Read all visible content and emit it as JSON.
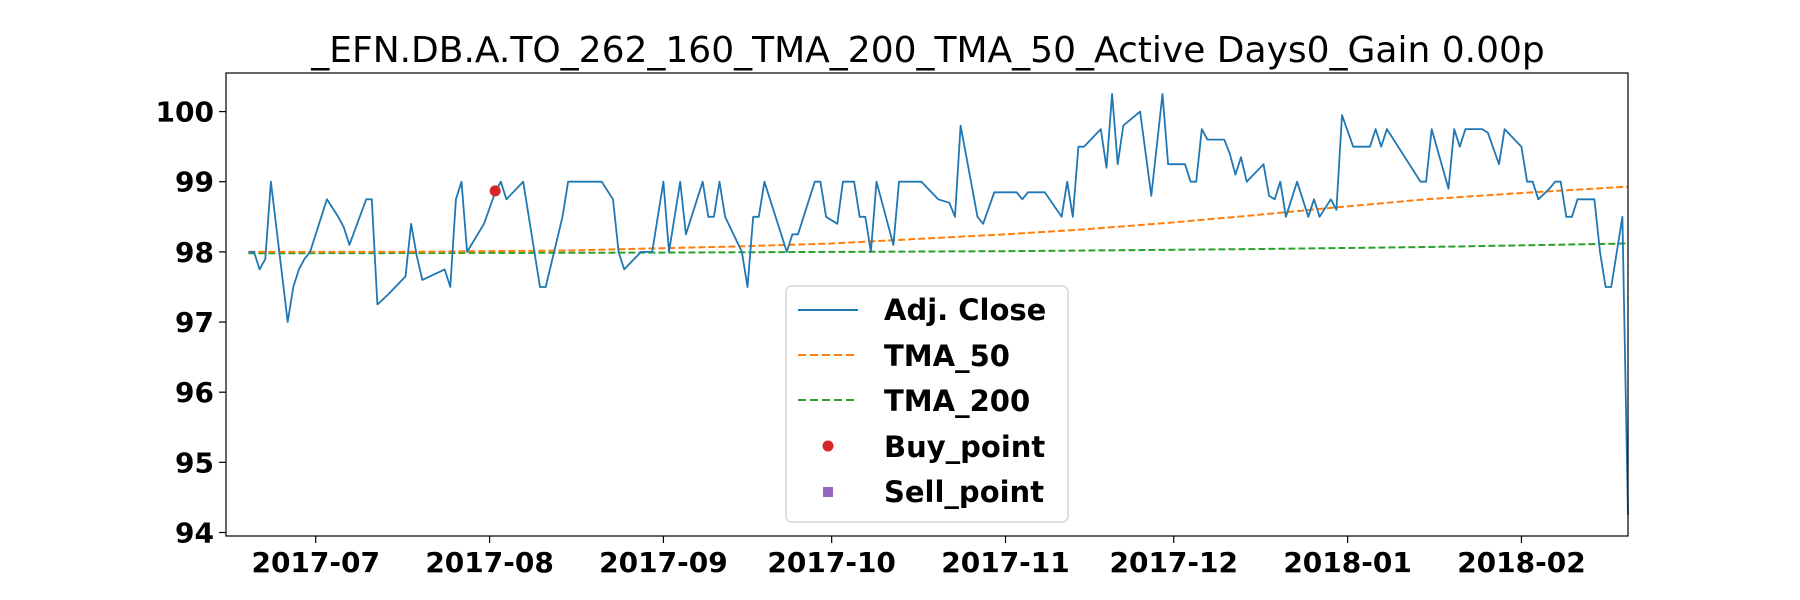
{
  "chart_data": {
    "type": "line",
    "title": "_EFN.DB.A.TO_262_160_TMA_200_TMA_50_Active Days0_Gain   0.00p",
    "xlabel": "",
    "ylabel": "",
    "xlim": [
      "2017-06-15",
      "2018-02-20"
    ],
    "ylim": [
      93.95,
      100.55
    ],
    "x_ticks": [
      "2017-07-01",
      "2017-08-01",
      "2017-09-01",
      "2017-10-01",
      "2017-11-01",
      "2017-12-01",
      "2018-01-01",
      "2018-02-01"
    ],
    "x_tick_labels": [
      "2017-07",
      "2017-08",
      "2017-09",
      "2017-10",
      "2017-11",
      "2017-12",
      "2018-01",
      "2018-02"
    ],
    "y_ticks": [
      94,
      95,
      96,
      97,
      98,
      99,
      100
    ],
    "y_tick_labels": [
      "94",
      "95",
      "96",
      "97",
      "98",
      "99",
      "100"
    ],
    "grid": false,
    "legend_position": "lower-center",
    "legend": [
      "Adj. Close",
      "TMA_50",
      "TMA_200",
      "Buy_point",
      "Sell_point"
    ],
    "colors": {
      "adj_close": "#1f77b4",
      "tma_50": "#ff7f0e",
      "tma_200": "#2ca02c",
      "buy_point": "#d62728",
      "sell_point": "#9467bd"
    },
    "series": [
      {
        "name": "Adj. Close",
        "style": "solid",
        "points": [
          [
            "2017-06-19",
            98.0
          ],
          [
            "2017-06-20",
            98.0
          ],
          [
            "2017-06-21",
            97.75
          ],
          [
            "2017-06-22",
            97.9
          ],
          [
            "2017-06-23",
            99.0
          ],
          [
            "2017-06-26",
            97.0
          ],
          [
            "2017-06-27",
            97.5
          ],
          [
            "2017-06-28",
            97.75
          ],
          [
            "2017-06-29",
            97.9
          ],
          [
            "2017-06-30",
            98.0
          ],
          [
            "2017-07-03",
            98.75
          ],
          [
            "2017-07-05",
            98.5
          ],
          [
            "2017-07-06",
            98.35
          ],
          [
            "2017-07-07",
            98.1
          ],
          [
            "2017-07-10",
            98.75
          ],
          [
            "2017-07-11",
            98.75
          ],
          [
            "2017-07-12",
            97.25
          ],
          [
            "2017-07-14",
            97.4
          ],
          [
            "2017-07-17",
            97.65
          ],
          [
            "2017-07-18",
            98.4
          ],
          [
            "2017-07-19",
            97.95
          ],
          [
            "2017-07-20",
            97.6
          ],
          [
            "2017-07-24",
            97.75
          ],
          [
            "2017-07-25",
            97.5
          ],
          [
            "2017-07-26",
            98.75
          ],
          [
            "2017-07-27",
            99.0
          ],
          [
            "2017-07-28",
            98.0
          ],
          [
            "2017-07-31",
            98.4
          ],
          [
            "2017-08-02",
            98.85
          ],
          [
            "2017-08-03",
            99.0
          ],
          [
            "2017-08-04",
            98.75
          ],
          [
            "2017-08-07",
            99.0
          ],
          [
            "2017-08-08",
            98.5
          ],
          [
            "2017-08-09",
            98.0
          ],
          [
            "2017-08-10",
            97.5
          ],
          [
            "2017-08-11",
            97.5
          ],
          [
            "2017-08-14",
            98.5
          ],
          [
            "2017-08-15",
            99.0
          ],
          [
            "2017-08-21",
            99.0
          ],
          [
            "2017-08-23",
            98.75
          ],
          [
            "2017-08-24",
            98.0
          ],
          [
            "2017-08-25",
            97.75
          ],
          [
            "2017-08-28",
            98.0
          ],
          [
            "2017-08-30",
            98.0
          ],
          [
            "2017-09-01",
            99.0
          ],
          [
            "2017-09-02",
            98.0
          ],
          [
            "2017-09-04",
            99.0
          ],
          [
            "2017-09-05",
            98.25
          ],
          [
            "2017-09-06",
            98.5
          ],
          [
            "2017-09-08",
            99.0
          ],
          [
            "2017-09-09",
            98.5
          ],
          [
            "2017-09-10",
            98.5
          ],
          [
            "2017-09-11",
            99.0
          ],
          [
            "2017-09-12",
            98.5
          ],
          [
            "2017-09-15",
            98.0
          ],
          [
            "2017-09-16",
            97.5
          ],
          [
            "2017-09-17",
            98.5
          ],
          [
            "2017-09-18",
            98.5
          ],
          [
            "2017-09-19",
            99.0
          ],
          [
            "2017-09-23",
            98.0
          ],
          [
            "2017-09-24",
            98.25
          ],
          [
            "2017-09-25",
            98.25
          ],
          [
            "2017-09-28",
            99.0
          ],
          [
            "2017-09-29",
            99.0
          ],
          [
            "2017-09-30",
            98.5
          ],
          [
            "2017-10-02",
            98.4
          ],
          [
            "2017-10-03",
            99.0
          ],
          [
            "2017-10-04",
            99.0
          ],
          [
            "2017-10-05",
            99.0
          ],
          [
            "2017-10-06",
            98.5
          ],
          [
            "2017-10-07",
            98.5
          ],
          [
            "2017-10-08",
            98.0
          ],
          [
            "2017-10-09",
            99.0
          ],
          [
            "2017-10-12",
            98.1
          ],
          [
            "2017-10-13",
            99.0
          ],
          [
            "2017-10-17",
            99.0
          ],
          [
            "2017-10-20",
            98.75
          ],
          [
            "2017-10-22",
            98.7
          ],
          [
            "2017-10-23",
            98.5
          ],
          [
            "2017-10-24",
            99.8
          ],
          [
            "2017-10-27",
            98.5
          ],
          [
            "2017-10-28",
            98.4
          ],
          [
            "2017-10-30",
            98.85
          ],
          [
            "2017-11-03",
            98.85
          ],
          [
            "2017-11-04",
            98.75
          ],
          [
            "2017-11-05",
            98.85
          ],
          [
            "2017-11-08",
            98.85
          ],
          [
            "2017-11-11",
            98.5
          ],
          [
            "2017-11-12",
            99.0
          ],
          [
            "2017-11-13",
            98.5
          ],
          [
            "2017-11-14",
            99.5
          ],
          [
            "2017-11-15",
            99.5
          ],
          [
            "2017-11-18",
            99.75
          ],
          [
            "2017-11-19",
            99.2
          ],
          [
            "2017-11-20",
            100.25
          ],
          [
            "2017-11-21",
            99.25
          ],
          [
            "2017-11-22",
            99.8
          ],
          [
            "2017-11-25",
            100.0
          ],
          [
            "2017-11-27",
            98.8
          ],
          [
            "2017-11-29",
            100.25
          ],
          [
            "2017-11-30",
            99.25
          ],
          [
            "2017-12-03",
            99.25
          ],
          [
            "2017-12-04",
            99.0
          ],
          [
            "2017-12-05",
            99.0
          ],
          [
            "2017-12-06",
            99.75
          ],
          [
            "2017-12-07",
            99.6
          ],
          [
            "2017-12-10",
            99.6
          ],
          [
            "2017-12-11",
            99.4
          ],
          [
            "2017-12-12",
            99.1
          ],
          [
            "2017-12-13",
            99.35
          ],
          [
            "2017-12-14",
            99.0
          ],
          [
            "2017-12-17",
            99.25
          ],
          [
            "2017-12-18",
            98.8
          ],
          [
            "2017-12-19",
            98.75
          ],
          [
            "2017-12-20",
            99.0
          ],
          [
            "2017-12-21",
            98.5
          ],
          [
            "2017-12-23",
            99.0
          ],
          [
            "2017-12-25",
            98.5
          ],
          [
            "2017-12-26",
            98.75
          ],
          [
            "2017-12-27",
            98.5
          ],
          [
            "2017-12-29",
            98.75
          ],
          [
            "2017-12-30",
            98.6
          ],
          [
            "2017-12-31",
            99.95
          ],
          [
            "2018-01-02",
            99.5
          ],
          [
            "2018-01-05",
            99.5
          ],
          [
            "2018-01-06",
            99.75
          ],
          [
            "2018-01-07",
            99.5
          ],
          [
            "2018-01-08",
            99.75
          ],
          [
            "2018-01-14",
            99.0
          ],
          [
            "2018-01-15",
            99.0
          ],
          [
            "2018-01-16",
            99.75
          ],
          [
            "2018-01-19",
            98.9
          ],
          [
            "2018-01-20",
            99.75
          ],
          [
            "2018-01-21",
            99.5
          ],
          [
            "2018-01-22",
            99.75
          ],
          [
            "2018-01-25",
            99.75
          ],
          [
            "2018-01-26",
            99.7
          ],
          [
            "2018-01-28",
            99.25
          ],
          [
            "2018-01-29",
            99.75
          ],
          [
            "2018-02-01",
            99.5
          ],
          [
            "2018-02-02",
            99.0
          ],
          [
            "2018-02-03",
            99.0
          ],
          [
            "2018-02-04",
            98.75
          ],
          [
            "2018-02-06",
            98.9
          ],
          [
            "2018-02-07",
            99.0
          ],
          [
            "2018-02-08",
            99.0
          ],
          [
            "2018-02-09",
            98.5
          ],
          [
            "2018-02-10",
            98.5
          ],
          [
            "2018-02-11",
            98.75
          ],
          [
            "2018-02-12",
            98.75
          ],
          [
            "2018-02-14",
            98.75
          ],
          [
            "2018-02-15",
            98.0
          ],
          [
            "2018-02-16",
            97.5
          ],
          [
            "2018-02-17",
            97.5
          ],
          [
            "2018-02-18",
            98.0
          ],
          [
            "2018-02-19",
            98.5
          ],
          [
            "2018-02-20",
            94.25
          ]
        ]
      },
      {
        "name": "TMA_50",
        "style": "dashed",
        "points": [
          [
            "2017-06-19",
            98.0
          ],
          [
            "2017-07-15",
            98.0
          ],
          [
            "2017-08-15",
            98.02
          ],
          [
            "2017-09-15",
            98.08
          ],
          [
            "2017-10-01",
            98.12
          ],
          [
            "2017-10-15",
            98.18
          ],
          [
            "2017-11-01",
            98.25
          ],
          [
            "2017-11-15",
            98.32
          ],
          [
            "2017-12-01",
            98.42
          ],
          [
            "2017-12-15",
            98.52
          ],
          [
            "2018-01-01",
            98.65
          ],
          [
            "2018-01-15",
            98.75
          ],
          [
            "2018-02-01",
            98.84
          ],
          [
            "2018-02-20",
            98.93
          ]
        ]
      },
      {
        "name": "TMA_200",
        "style": "dashed",
        "points": [
          [
            "2017-06-19",
            97.98
          ],
          [
            "2017-09-01",
            97.99
          ],
          [
            "2017-11-01",
            98.01
          ],
          [
            "2017-12-15",
            98.04
          ],
          [
            "2018-01-15",
            98.07
          ],
          [
            "2018-02-20",
            98.12
          ]
        ]
      },
      {
        "name": "Buy_point",
        "style": "marker",
        "points": [
          [
            "2017-08-02",
            98.87
          ]
        ]
      },
      {
        "name": "Sell_point",
        "style": "marker",
        "points": []
      }
    ]
  }
}
